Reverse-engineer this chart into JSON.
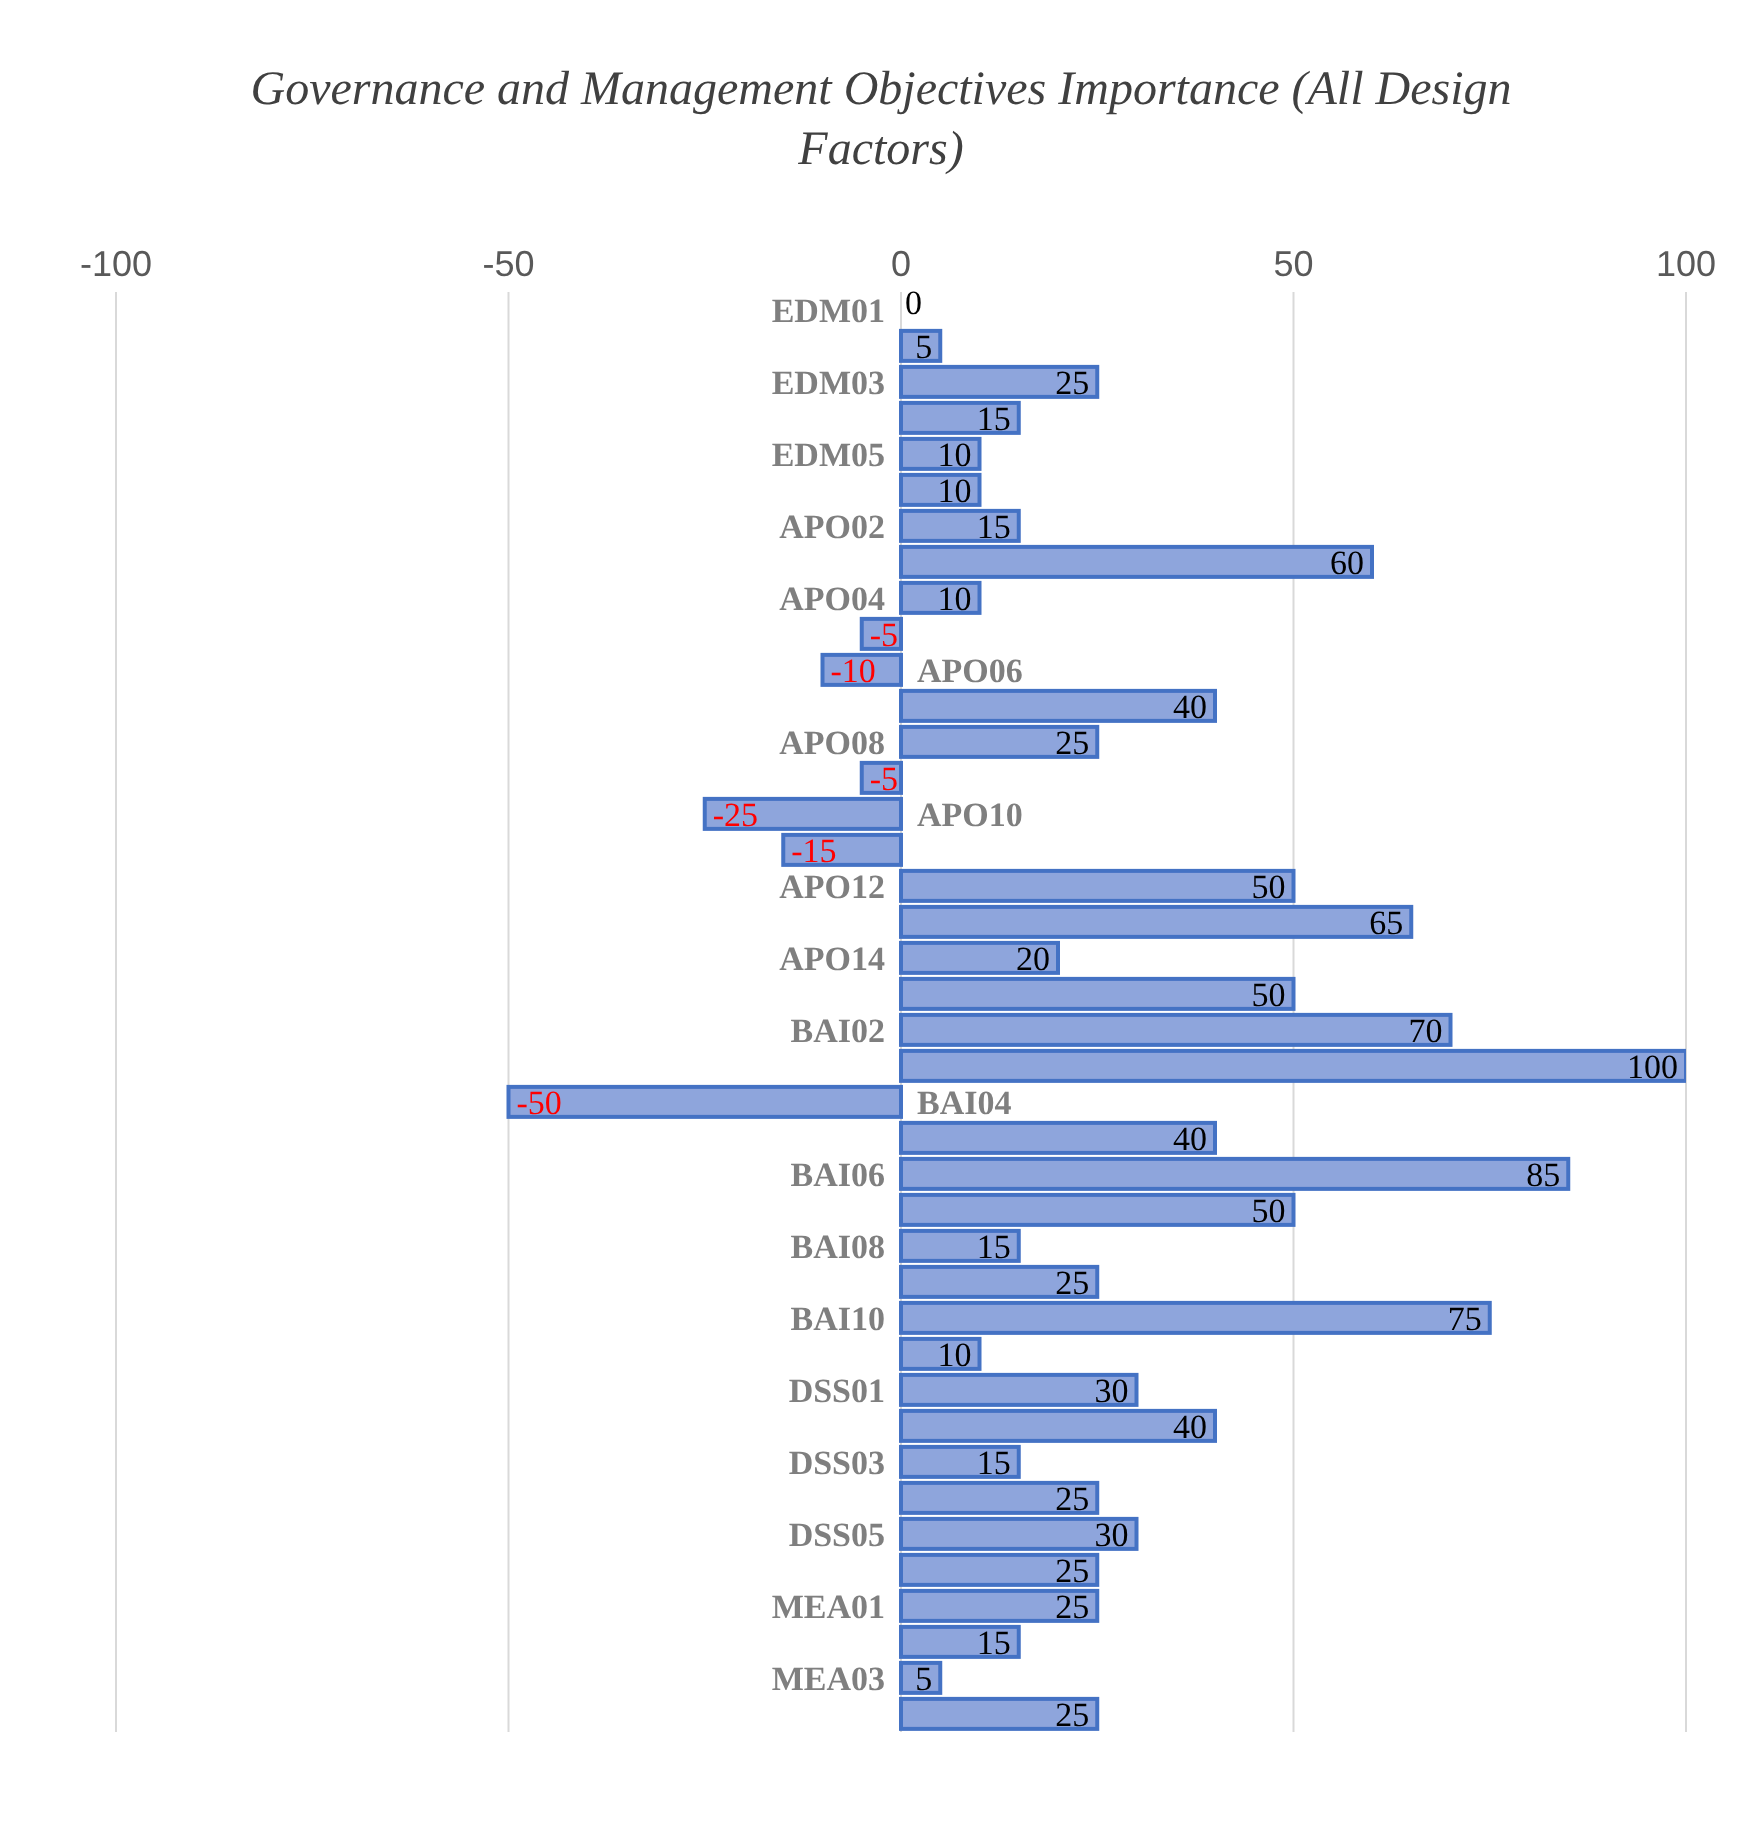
{
  "chart_data": {
    "type": "bar",
    "orientation": "horizontal",
    "title": "Governance and Management Objectives Importance (All Design Factors)",
    "categories": [
      "EDM01",
      null,
      "EDM03",
      null,
      "EDM05",
      null,
      "APO02",
      null,
      "APO04",
      null,
      "APO06",
      null,
      "APO08",
      null,
      "APO10",
      null,
      "APO12",
      null,
      "APO14",
      null,
      "BAI02",
      null,
      "BAI04",
      null,
      "BAI06",
      null,
      "BAI08",
      null,
      "BAI10",
      null,
      "DSS01",
      null,
      "DSS03",
      null,
      "DSS05",
      null,
      "MEA01",
      null,
      "MEA03",
      null
    ],
    "values": [
      0,
      5,
      25,
      15,
      10,
      10,
      15,
      60,
      10,
      -5,
      -10,
      40,
      25,
      -5,
      -25,
      -15,
      50,
      65,
      20,
      50,
      70,
      100,
      -50,
      40,
      85,
      50,
      15,
      25,
      75,
      10,
      30,
      40,
      15,
      25,
      30,
      25,
      25,
      15,
      5,
      25
    ],
    "color": "#8ea5dc",
    "data_labels": true,
    "xlim": [
      -100,
      100
    ],
    "xticks": [
      -100,
      -50,
      0,
      50,
      100
    ],
    "grid": "x"
  }
}
